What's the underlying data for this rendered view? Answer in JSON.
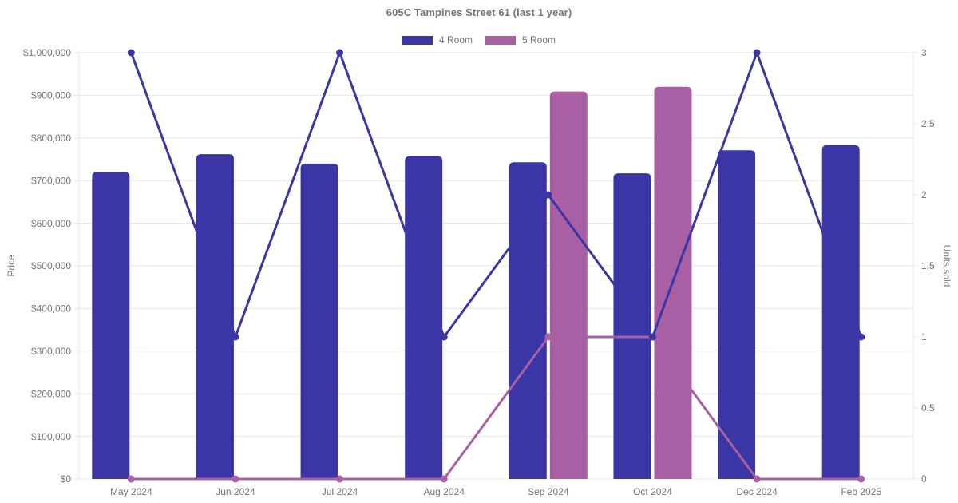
{
  "chart_data": {
    "type": "bar+line",
    "title": "605C Tampines Street 61 (last 1 year)",
    "categories": [
      "May 2024",
      "Jun 2024",
      "Jul 2024",
      "Aug 2024",
      "Sep 2024",
      "Oct 2024",
      "Dec 2024",
      "Feb 2025"
    ],
    "series": [
      {
        "name": "4 Room",
        "type": "bar",
        "axis": "left",
        "color": "#3b36a5",
        "values": [
          720000,
          762000,
          740000,
          757000,
          743000,
          717000,
          771000,
          783000
        ]
      },
      {
        "name": "5 Room",
        "type": "bar",
        "axis": "left",
        "color": "#a85fa3",
        "values": [
          null,
          null,
          null,
          null,
          909000,
          920000,
          null,
          null
        ]
      },
      {
        "name": "4 Room",
        "type": "line",
        "axis": "right",
        "color": "#3b36a5",
        "values": [
          3,
          1,
          3,
          1,
          2,
          1,
          3,
          1
        ]
      },
      {
        "name": "5 Room",
        "type": "line",
        "axis": "right",
        "color": "#a85fa3",
        "values": [
          0,
          0,
          0,
          0,
          1,
          1,
          0,
          0
        ]
      }
    ],
    "xlabel": "",
    "ylabel_left": "Price",
    "ylabel_right": "Units sold",
    "ylim_left": [
      0,
      1000000
    ],
    "ylim_right": [
      0,
      3
    ],
    "yticks_left": [
      "$0",
      "$100,000",
      "$200,000",
      "$300,000",
      "$400,000",
      "$500,000",
      "$600,000",
      "$700,000",
      "$800,000",
      "$900,000",
      "$1,000,000"
    ],
    "yticks_left_values": [
      0,
      100000,
      200000,
      300000,
      400000,
      500000,
      600000,
      700000,
      800000,
      900000,
      1000000
    ],
    "yticks_right": [
      "0",
      "0.5",
      "1",
      "1.5",
      "2",
      "2.5",
      "3"
    ],
    "yticks_right_values": [
      0,
      0.5,
      1,
      1.5,
      2,
      2.5,
      3
    ],
    "grid": true,
    "legend_position": "top"
  },
  "colors": {
    "grid": "#e6e6e6",
    "tick_text": "#737373",
    "title_text": "#757575",
    "background": "#ffffff"
  }
}
